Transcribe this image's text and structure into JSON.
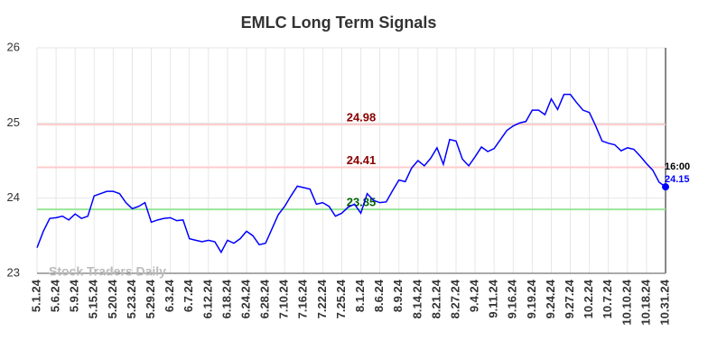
{
  "chart_data": {
    "type": "line",
    "title": "EMLC Long Term Signals",
    "categories": [
      "5.1.24",
      null,
      null,
      "5.6.24",
      null,
      null,
      "5.9.24",
      null,
      null,
      "5.15.24",
      null,
      null,
      "5.20.24",
      null,
      null,
      "5.23.24",
      null,
      null,
      "5.29.24",
      null,
      null,
      "6.3.24",
      null,
      null,
      "6.7.24",
      null,
      null,
      "6.12.24",
      null,
      null,
      "6.18.24",
      null,
      null,
      "6.24.24",
      null,
      null,
      "6.28.24",
      null,
      null,
      "7.10.24",
      null,
      null,
      "7.16.24",
      null,
      null,
      "7.22.24",
      null,
      null,
      "7.25.24",
      null,
      null,
      "8.1.24",
      null,
      null,
      "8.6.24",
      null,
      null,
      "8.9.24",
      null,
      null,
      "8.14.24",
      null,
      null,
      "8.21.24",
      null,
      null,
      "8.27.24",
      null,
      null,
      "9.4.24",
      null,
      null,
      "9.11.24",
      null,
      null,
      "9.16.24",
      null,
      null,
      "9.19.24",
      null,
      null,
      "9.24.24",
      null,
      null,
      "9.27.24",
      null,
      null,
      "10.2.24",
      null,
      null,
      "10.7.24",
      null,
      null,
      "10.10.24",
      null,
      null,
      "10.18.24",
      null,
      null,
      "10.31.24"
    ],
    "values": [
      23.34,
      23.56,
      23.73,
      23.74,
      23.76,
      23.71,
      23.79,
      23.73,
      23.76,
      24.03,
      24.06,
      24.09,
      24.09,
      24.06,
      23.94,
      23.86,
      23.89,
      23.94,
      23.68,
      23.71,
      23.73,
      23.74,
      23.7,
      23.71,
      23.46,
      23.44,
      23.42,
      23.44,
      23.42,
      23.28,
      23.44,
      23.4,
      23.46,
      23.56,
      23.5,
      23.38,
      23.4,
      23.59,
      23.78,
      23.89,
      24.03,
      24.16,
      24.14,
      24.12,
      23.92,
      23.94,
      23.89,
      23.76,
      23.8,
      23.88,
      23.92,
      23.8,
      24.06,
      23.97,
      23.94,
      23.95,
      24.1,
      24.24,
      24.22,
      24.4,
      24.5,
      24.43,
      24.53,
      24.67,
      24.45,
      24.78,
      24.76,
      24.52,
      24.43,
      24.55,
      24.68,
      24.62,
      24.66,
      24.78,
      24.9,
      24.96,
      25.0,
      25.02,
      25.17,
      25.17,
      25.11,
      25.32,
      25.18,
      25.38,
      25.38,
      25.27,
      25.17,
      25.14,
      24.96,
      24.76,
      24.73,
      24.71,
      24.63,
      24.67,
      24.65,
      24.56,
      24.46,
      24.37,
      24.21,
      24.15
    ],
    "color": "#0000ff",
    "ylim": [
      23,
      26
    ],
    "yticks": [
      23,
      24,
      25,
      26
    ],
    "grid": true,
    "reference_lines": [
      {
        "value": 24.98,
        "color": "#ffcccc",
        "label_color": "#8b0000"
      },
      {
        "value": 24.41,
        "color": "#ffcccc",
        "label_color": "#8b0000"
      },
      {
        "value": 23.85,
        "color": "#99e699",
        "label_color": "#006400"
      }
    ],
    "last_time": "16:00",
    "watermark": "Stock Traders Daily"
  }
}
